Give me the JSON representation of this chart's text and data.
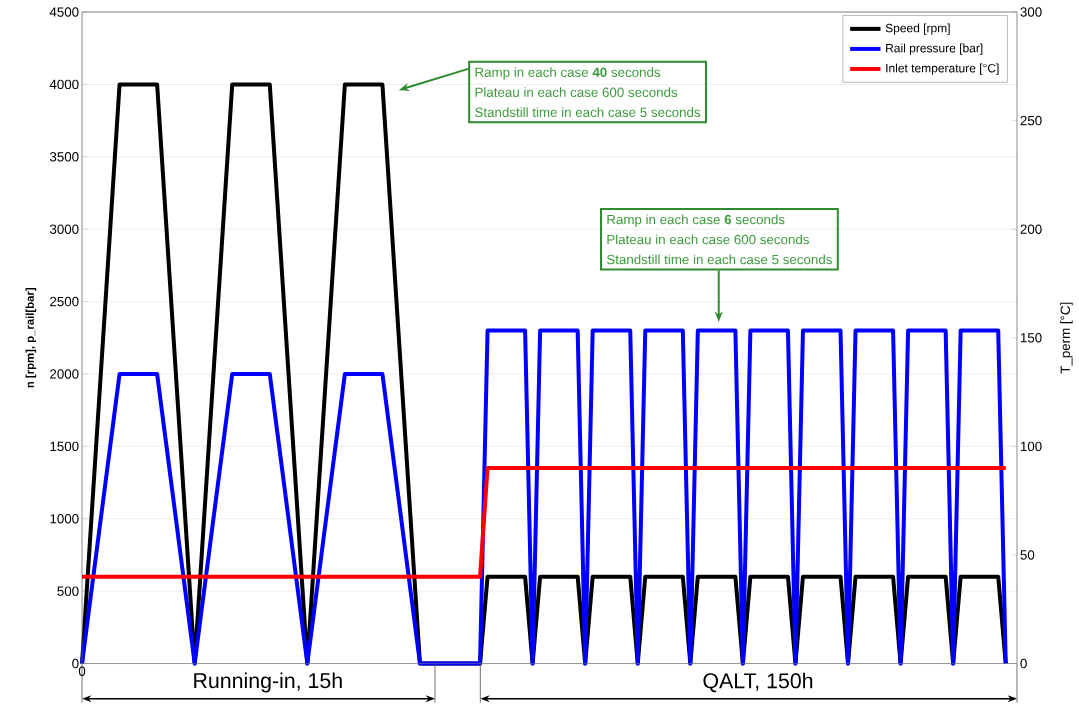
{
  "chart_data": {
    "type": "line",
    "ylabel": "n [rpm], p_rail[bar]",
    "y2label": "T_perm [°C]",
    "categories": [
      null,
      null,
      null,
      null,
      null,
      null,
      null,
      null,
      null,
      null,
      null,
      null,
      null,
      null,
      null,
      null,
      null,
      null,
      null,
      null,
      null,
      null,
      null,
      null,
      null,
      null,
      null,
      null,
      null,
      null,
      null,
      null,
      null,
      null,
      null,
      null,
      null,
      null,
      null,
      null,
      null,
      null,
      null,
      null,
      null,
      null,
      null,
      null,
      null,
      null,
      null,
      null,
      null,
      null,
      null,
      null,
      null,
      null,
      null,
      null,
      null,
      null,
      null,
      null,
      null,
      null,
      null,
      null,
      null,
      null,
      null,
      null,
      null,
      null,
      null,
      null,
      null,
      null,
      null,
      null,
      null,
      null,
      null,
      null,
      null,
      null,
      null,
      null,
      null,
      null,
      null,
      null,
      null,
      null,
      null,
      null,
      null,
      null,
      null,
      null,
      null,
      null,
      null,
      null,
      null,
      null,
      null,
      null,
      null,
      null,
      null,
      null,
      null,
      null,
      null,
      null,
      null,
      null,
      null,
      null,
      null,
      null,
      null,
      null
    ],
    "ylim": [
      0,
      4500
    ],
    "yticks": [
      0,
      500,
      1000,
      1500,
      2000,
      2500,
      3000,
      3500,
      4000,
      4500
    ],
    "y2lim": [
      0,
      300
    ],
    "y2ticks": [
      0,
      50,
      100,
      150,
      200,
      250,
      300
    ],
    "grid": "y",
    "legend": "top right",
    "marker": "none",
    "line_style": "solid",
    "series": [
      {
        "name": "Speed [rpm]",
        "color": "#000000",
        "values": [
          0,
          800,
          1600,
          2400,
          3200,
          4000,
          4000,
          4000,
          4000,
          4000,
          4000,
          3200,
          2400,
          1600,
          800,
          0,
          800,
          1600,
          2400,
          3200,
          4000,
          4000,
          4000,
          4000,
          4000,
          4000,
          3200,
          2400,
          1600,
          800,
          0,
          800,
          1600,
          2400,
          3200,
          4000,
          4000,
          4000,
          4000,
          4000,
          4000,
          3200,
          2400,
          1600,
          800,
          0,
          0,
          0,
          0,
          0,
          0,
          0,
          0,
          0,
          600,
          600,
          600,
          600,
          600,
          600,
          0,
          600,
          600,
          600,
          600,
          600,
          600,
          0,
          600,
          600,
          600,
          600,
          600,
          600,
          0,
          600,
          600,
          600,
          600,
          600,
          600,
          0,
          600,
          600,
          600,
          600,
          600,
          600,
          0,
          600,
          600,
          600,
          600,
          600,
          600,
          0,
          600,
          600,
          600,
          600,
          600,
          600,
          0,
          600,
          600,
          600,
          600,
          600,
          600,
          0,
          600,
          600,
          600,
          600,
          600,
          600,
          0,
          600,
          600,
          600,
          600,
          600,
          600,
          0
        ]
      },
      {
        "name": "Rail pressure [bar]",
        "color": "#0000ff",
        "values": [
          0,
          400,
          800,
          1200,
          1600,
          2000,
          2000,
          2000,
          2000,
          2000,
          2000,
          1600,
          1200,
          800,
          400,
          0,
          400,
          800,
          1200,
          1600,
          2000,
          2000,
          2000,
          2000,
          2000,
          2000,
          1600,
          1200,
          800,
          400,
          0,
          400,
          800,
          1200,
          1600,
          2000,
          2000,
          2000,
          2000,
          2000,
          2000,
          1600,
          1200,
          800,
          400,
          0,
          0,
          0,
          0,
          0,
          0,
          0,
          0,
          0,
          2300,
          2300,
          2300,
          2300,
          2300,
          2300,
          0,
          2300,
          2300,
          2300,
          2300,
          2300,
          2300,
          0,
          2300,
          2300,
          2300,
          2300,
          2300,
          2300,
          0,
          2300,
          2300,
          2300,
          2300,
          2300,
          2300,
          0,
          2300,
          2300,
          2300,
          2300,
          2300,
          2300,
          0,
          2300,
          2300,
          2300,
          2300,
          2300,
          2300,
          0,
          2300,
          2300,
          2300,
          2300,
          2300,
          2300,
          0,
          2300,
          2300,
          2300,
          2300,
          2300,
          2300,
          0,
          2300,
          2300,
          2300,
          2300,
          2300,
          2300,
          0,
          2300,
          2300,
          2300,
          2300,
          2300,
          2300,
          0
        ]
      },
      {
        "name": "Inlet temperature [°C]",
        "color": "#ff0000",
        "axis": "y2",
        "values": [
          40,
          40,
          40,
          40,
          40,
          40,
          40,
          40,
          40,
          40,
          40,
          40,
          40,
          40,
          40,
          40,
          40,
          40,
          40,
          40,
          40,
          40,
          40,
          40,
          40,
          40,
          40,
          40,
          40,
          40,
          40,
          40,
          40,
          40,
          40,
          40,
          40,
          40,
          40,
          40,
          40,
          40,
          40,
          40,
          40,
          40,
          40,
          40,
          40,
          40,
          40,
          40,
          40,
          40,
          90,
          90,
          90,
          90,
          90,
          90,
          90,
          90,
          90,
          90,
          90,
          90,
          90,
          90,
          90,
          90,
          90,
          90,
          90,
          90,
          90,
          90,
          90,
          90,
          90,
          90,
          90,
          90,
          90,
          90,
          90,
          90,
          90,
          90,
          90,
          90,
          90,
          90,
          90,
          90,
          90,
          90,
          90,
          90,
          90,
          90,
          90,
          90,
          90,
          90,
          90,
          90,
          90,
          90,
          90,
          90,
          90,
          90,
          90,
          90,
          90,
          90,
          90,
          90,
          90,
          90,
          90,
          90,
          90,
          90
        ]
      }
    ],
    "annotations": [
      "Ramp in each case **40** seconds",
      "Plateau in each case 600 seconds",
      "Standstill time in each case 5 seconds",
      "Ramp in each case **6** seconds",
      "Plateau in each case 600 seconds",
      "Standstill time in each case 5 seconds",
      "Running-in, 15h",
      "QALT, 150h",
      "0"
    ]
  }
}
